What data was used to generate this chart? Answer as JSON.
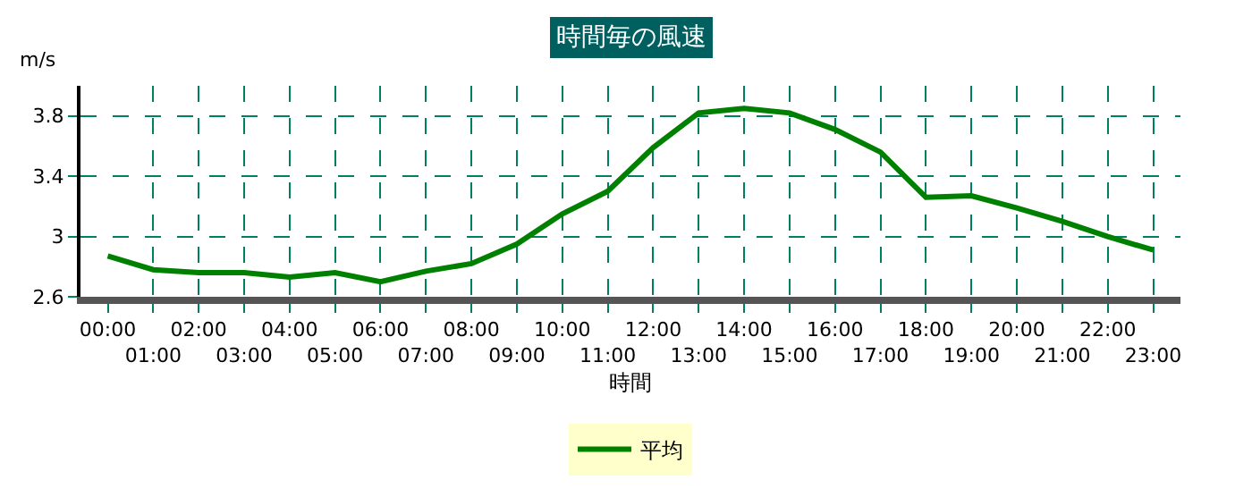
{
  "chart_data": {
    "type": "line",
    "title": "時間毎の風速",
    "xlabel": "時間",
    "ylabel": "m/s",
    "categories": [
      "00:00",
      "01:00",
      "02:00",
      "03:00",
      "04:00",
      "05:00",
      "06:00",
      "07:00",
      "08:00",
      "09:00",
      "10:00",
      "11:00",
      "12:00",
      "13:00",
      "14:00",
      "15:00",
      "16:00",
      "17:00",
      "18:00",
      "19:00",
      "20:00",
      "21:00",
      "22:00",
      "23:00"
    ],
    "series": [
      {
        "name": "平均",
        "color": "#008000",
        "values": [
          2.87,
          2.78,
          2.76,
          2.76,
          2.73,
          2.76,
          2.7,
          2.77,
          2.82,
          2.95,
          3.15,
          3.3,
          3.59,
          3.82,
          3.85,
          3.82,
          3.71,
          3.56,
          3.26,
          3.27,
          3.19,
          3.1,
          3.0,
          2.91
        ]
      }
    ],
    "ylim": [
      2.6,
      4.0
    ],
    "yticks": [
      2.6,
      3,
      3.4,
      3.8
    ],
    "grid": true,
    "legend": "bottom",
    "marker": "none",
    "line_style": "solid"
  }
}
